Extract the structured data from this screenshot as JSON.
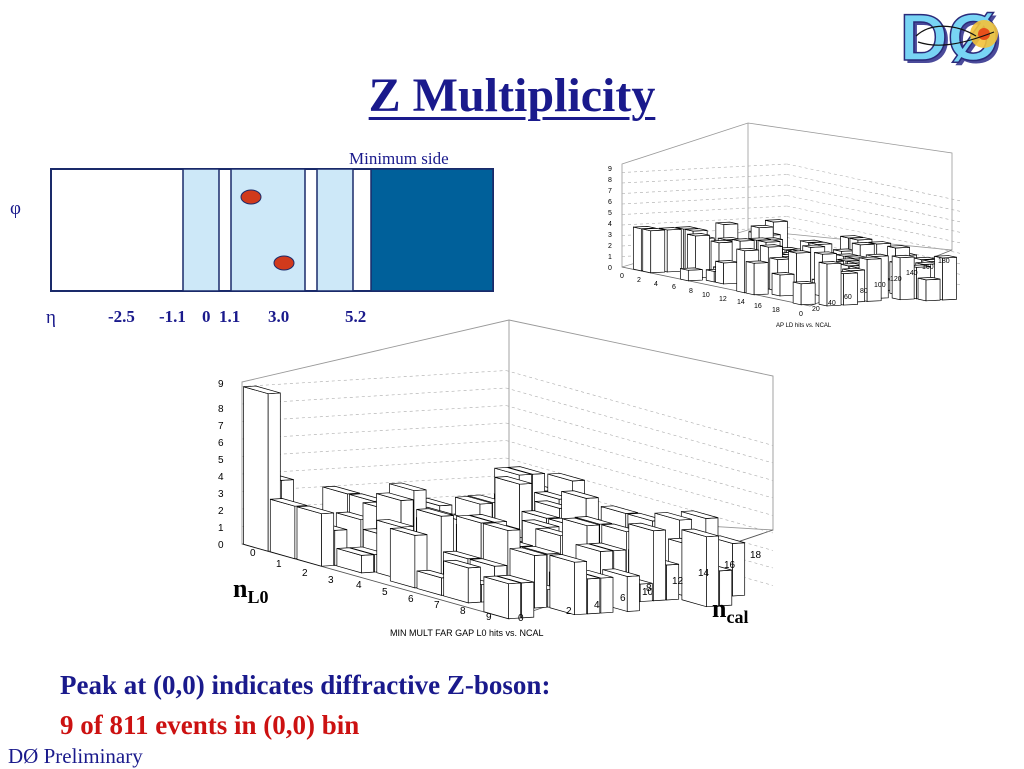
{
  "slide": {
    "title": "Z Multiplicity",
    "logo_text": "DØ",
    "detector": {
      "label_top": "Minimum side",
      "phi_label": "φ",
      "eta_label": "η",
      "eta_ticks": [
        "-2.5",
        "-1.1",
        "0",
        "1.1",
        "3.0",
        "5.2"
      ],
      "colors": {
        "light": "#cde8f8",
        "dark": "#00609a",
        "dot": "#d13a1c",
        "border": "#1a2a6a"
      }
    },
    "plot_small": {
      "caption": "AP LD hits vs. NCAL",
      "z_ticks": [
        "0",
        "1",
        "2",
        "3",
        "4",
        "5",
        "6",
        "7",
        "8",
        "9"
      ],
      "x_ticks": [
        "0",
        "2",
        "4",
        "6",
        "8",
        "10",
        "12",
        "14",
        "16",
        "18"
      ],
      "y_ticks": [
        "0",
        "20",
        "40",
        "60",
        "80",
        "100",
        "120",
        "140",
        "160",
        "180"
      ]
    },
    "plot_big": {
      "caption": "MIN MULT FAR GAP L0 hits vs. NCAL",
      "z_ticks": [
        "0",
        "1",
        "2",
        "3",
        "4",
        "5",
        "6",
        "7",
        "8",
        "9"
      ],
      "x_ticks": [
        "0",
        "1",
        "2",
        "3",
        "4",
        "5",
        "6",
        "7",
        "8",
        "9"
      ],
      "y_ticks": [
        "0",
        "2",
        "4",
        "6",
        "8",
        "10",
        "12",
        "14",
        "16",
        "18"
      ],
      "x_axis_main": "n",
      "x_axis_sub": "L0",
      "y_axis_main": "n",
      "y_axis_sub": "cal"
    },
    "text": {
      "line1": "Peak at (0,0) indicates diffractive Z-boson:",
      "line2": "9 of 811 events in (0,0) bin",
      "footer": "DØ Preliminary"
    }
  }
}
